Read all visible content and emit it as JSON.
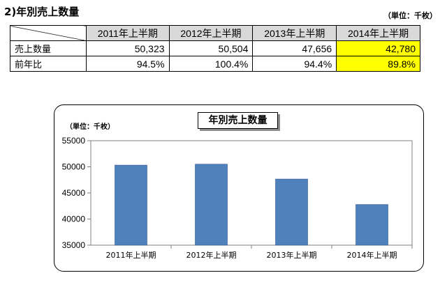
{
  "heading": "2)年別売上数量",
  "unit_label": "（単位：千枚）",
  "table": {
    "columns": [
      "2011年上半期",
      "2012年上半期",
      "2013年上半期",
      "2014年上半期"
    ],
    "rows": [
      {
        "label": "売上数量",
        "values": [
          "50,323",
          "50,504",
          "47,656",
          "42,780"
        ]
      },
      {
        "label": "前年比",
        "values": [
          "94.5%",
          "100.4%",
          "94.4%",
          "89.8%"
        ]
      }
    ],
    "highlight_color": "#ffff00",
    "header_color": "#d9d9d9"
  },
  "chart_data": {
    "type": "bar",
    "title": "年別売上数量",
    "unit_note": "（単位：千枚）",
    "categories": [
      "2011年上半期",
      "2012年上半期",
      "2013年上半期",
      "2014年上半期"
    ],
    "values": [
      50323,
      50504,
      47656,
      42780
    ],
    "ylim": [
      35000,
      55000
    ],
    "yticks": [
      35000,
      40000,
      45000,
      50000,
      55000
    ],
    "grid": false,
    "bar_color": "#4f81bd",
    "xlabel": "",
    "ylabel": ""
  }
}
